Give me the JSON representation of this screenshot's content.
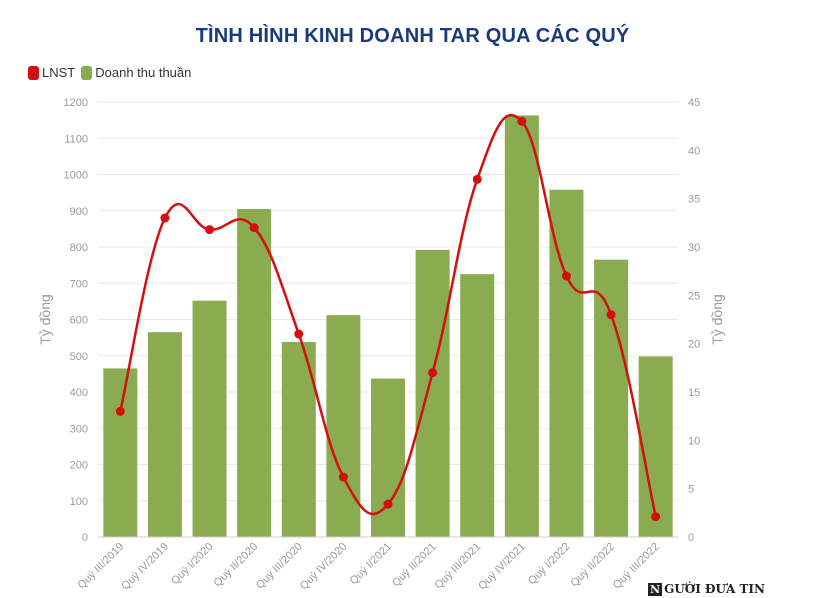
{
  "colors": {
    "bar": "#8aab4f",
    "line": "#d40f0f",
    "grid": "#e8e8e8",
    "axis_text": "#9a9a9a",
    "title": "#1a3a7a"
  },
  "watermark": {
    "mark": "N",
    "text": "GƯỜI ĐƯA TIN"
  },
  "chart_data": {
    "type": "bar",
    "title": "TÌNH HÌNH KINH DOANH TAR QUA CÁC QUÝ",
    "categories": [
      "Quý III/2019",
      "Quý IV/2019",
      "Quý I/2020",
      "Quý II/2020",
      "Quý III/2020",
      "Quý IV/2020",
      "Quý I/2021",
      "Quý II/2021",
      "Quý III/2021",
      "Quý IV/2021",
      "Quý I/2022",
      "Quý II/2022",
      "Quý III/2022"
    ],
    "series": [
      {
        "name": "LNST",
        "type": "line",
        "axis": "right",
        "color": "#d40f0f",
        "values": [
          13,
          33,
          31.8,
          32,
          21,
          6.2,
          3.4,
          17,
          37,
          43,
          27,
          23,
          2.1
        ]
      },
      {
        "name": "Doanh thu thuần",
        "type": "bar",
        "axis": "left",
        "color": "#8aab4f",
        "values": [
          465,
          565,
          652,
          905,
          538,
          612,
          437,
          792,
          725,
          1163,
          958,
          765,
          498
        ]
      }
    ],
    "ylabel": "Tỷ đồng",
    "ylabel_right": "Tỷ đồng",
    "ylim": [
      0,
      1200
    ],
    "y_ticks": [
      "0",
      "100",
      "200",
      "300",
      "400",
      "500",
      "600",
      "700",
      "800",
      "900",
      "1000",
      "1100",
      "1200"
    ],
    "ylim_right": [
      0,
      45
    ],
    "y_ticks_right": [
      "0",
      "5",
      "10",
      "15",
      "20",
      "25",
      "30",
      "35",
      "40",
      "45"
    ],
    "grid": true,
    "legend": "top-left"
  }
}
